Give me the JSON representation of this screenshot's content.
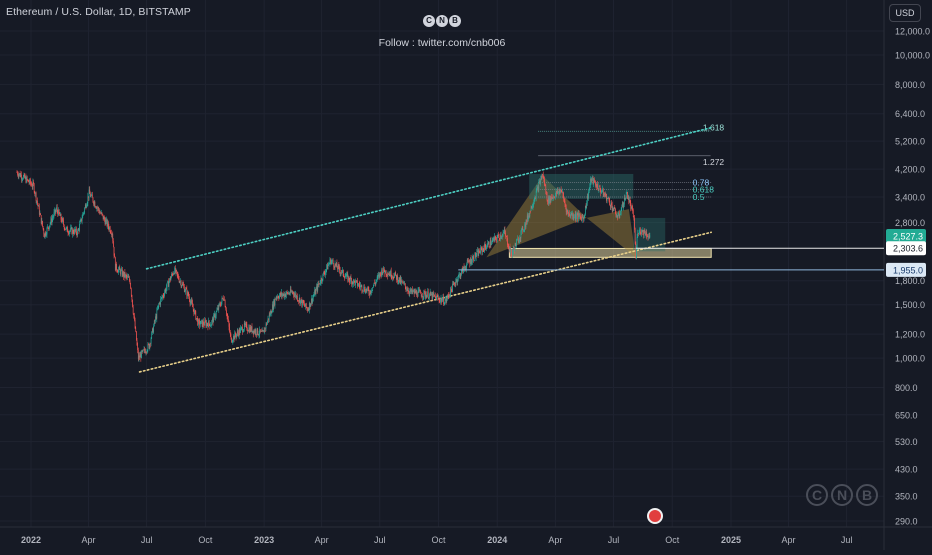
{
  "symbol": {
    "title": "Ethereum / U.S. Dollar, 1D, BITSTAMP"
  },
  "watermark": {
    "letters": [
      "C",
      "N",
      "B"
    ],
    "follow": "Follow : twitter.com/cnb006"
  },
  "currency_button": "USD",
  "colors": {
    "background": "#161a25",
    "up": "#26a69a",
    "down": "#ef5350",
    "upper_channel": "#4dd0c4",
    "lower_channel": "#e8d08a",
    "pattern_fill": "#a88a3c",
    "box_fill": "#2a6f6a",
    "support_zone": "#e0d29a",
    "price_label_up": "#22ab94",
    "white_line": "#e8e8e8",
    "blue_line": "#8fb8de"
  },
  "chart_data": {
    "type": "candlestick",
    "title": "Ethereum / U.S. Dollar, 1D, BITSTAMP",
    "scale": "log",
    "y_axis": {
      "ticks": [
        "12,000.0",
        "10,000.0",
        "8,000.0",
        "6,400.0",
        "5,200.0",
        "4,200.0",
        "3,400.0",
        "2,800.0",
        "1,800.0",
        "1,500.0",
        "1,200.0",
        "1,000.0",
        "800.0",
        "650.0",
        "530.0",
        "430.0",
        "350.0",
        "290.0"
      ],
      "tick_values": [
        12000,
        10000,
        8000,
        6400,
        5200,
        4200,
        3400,
        2800,
        1800,
        1500,
        1200,
        1000,
        800,
        650,
        530,
        430,
        350,
        290
      ]
    },
    "x_axis": {
      "ticks": [
        "2022",
        "Apr",
        "Jul",
        "Oct",
        "2023",
        "Apr",
        "Jul",
        "Oct",
        "2024",
        "Apr",
        "Jul",
        "Oct",
        "2025",
        "Apr",
        "Jul"
      ],
      "tick_dates": [
        "2022-01-01",
        "2022-04-01",
        "2022-07-01",
        "2022-10-01",
        "2023-01-01",
        "2023-04-01",
        "2023-07-01",
        "2023-10-01",
        "2024-01-01",
        "2024-04-01",
        "2024-07-01",
        "2024-10-01",
        "2025-01-01",
        "2025-04-01",
        "2025-07-01"
      ]
    },
    "price_path": [
      [
        "2021-12-10",
        4100
      ],
      [
        "2021-12-20",
        3950
      ],
      [
        "2022-01-05",
        3700
      ],
      [
        "2022-01-22",
        2550
      ],
      [
        "2022-02-10",
        3100
      ],
      [
        "2022-02-25",
        2650
      ],
      [
        "2022-03-15",
        2600
      ],
      [
        "2022-04-02",
        3500
      ],
      [
        "2022-04-20",
        3000
      ],
      [
        "2022-05-08",
        2600
      ],
      [
        "2022-05-13",
        2000
      ],
      [
        "2022-06-05",
        1800
      ],
      [
        "2022-06-18",
        1000
      ],
      [
        "2022-07-05",
        1100
      ],
      [
        "2022-07-20",
        1500
      ],
      [
        "2022-08-13",
        1950
      ],
      [
        "2022-09-05",
        1600
      ],
      [
        "2022-09-20",
        1300
      ],
      [
        "2022-10-10",
        1300
      ],
      [
        "2022-10-30",
        1600
      ],
      [
        "2022-11-10",
        1150
      ],
      [
        "2022-12-01",
        1270
      ],
      [
        "2022-12-30",
        1200
      ],
      [
        "2023-01-20",
        1600
      ],
      [
        "2023-02-15",
        1650
      ],
      [
        "2023-03-10",
        1450
      ],
      [
        "2023-03-30",
        1800
      ],
      [
        "2023-04-15",
        2100
      ],
      [
        "2023-05-10",
        1850
      ],
      [
        "2023-06-15",
        1650
      ],
      [
        "2023-07-05",
        1950
      ],
      [
        "2023-07-25",
        1870
      ],
      [
        "2023-08-18",
        1650
      ],
      [
        "2023-09-15",
        1620
      ],
      [
        "2023-10-12",
        1540
      ],
      [
        "2023-10-28",
        1800
      ],
      [
        "2023-11-15",
        2050
      ],
      [
        "2023-12-10",
        2300
      ],
      [
        "2024-01-12",
        2600
      ],
      [
        "2024-01-23",
        2200
      ],
      [
        "2024-02-15",
        2800
      ],
      [
        "2024-03-12",
        4050
      ],
      [
        "2024-03-20",
        3300
      ],
      [
        "2024-04-10",
        3600
      ],
      [
        "2024-04-20",
        3000
      ],
      [
        "2024-05-15",
        2900
      ],
      [
        "2024-05-27",
        3900
      ],
      [
        "2024-06-15",
        3500
      ],
      [
        "2024-06-24",
        3300
      ],
      [
        "2024-07-08",
        2900
      ],
      [
        "2024-07-22",
        3500
      ],
      [
        "2024-08-02",
        2900
      ],
      [
        "2024-08-05",
        2150
      ],
      [
        "2024-08-08",
        2650
      ],
      [
        "2024-08-20",
        2600
      ],
      [
        "2024-08-27",
        2500
      ]
    ],
    "price_labels": [
      {
        "value": 2527.3,
        "text": "2,527.3",
        "kind": "last-price"
      },
      {
        "value": 2303.6,
        "text": "2,303.6",
        "kind": "support-line"
      },
      {
        "value": 1955.0,
        "text": "1,955.0",
        "kind": "blue-line"
      }
    ],
    "fib_levels": [
      {
        "label": "1.618",
        "value": 5600
      },
      {
        "label": "1.272",
        "value": 4650
      },
      {
        "label": "0.78",
        "value": 3800
      },
      {
        "label": "0.618",
        "value": 3600
      },
      {
        "label": "0.5",
        "value": 3400
      }
    ],
    "channel": {
      "upper": {
        "start": [
          "2022-07-01",
          1970
        ],
        "end": [
          "2024-11-30",
          5750
        ]
      },
      "lower": {
        "start": [
          "2022-06-20",
          900
        ],
        "end": [
          "2024-12-01",
          2600
        ]
      }
    },
    "support_zone": {
      "start": "2024-01-20",
      "end": "2024-12-01",
      "low": 2150,
      "high": 2300
    },
    "reference_lines": [
      {
        "value": 2303.6,
        "start": "2024-08-05",
        "color": "white"
      },
      {
        "value": 1955.0,
        "start": "2023-11-01",
        "color": "blue"
      }
    ],
    "pattern": {
      "points": [
        [
          "2023-12-15",
          2150
        ],
        [
          "2024-03-12",
          4000
        ],
        [
          "2024-05-20",
          2900
        ],
        [
          "2024-07-25",
          3100
        ],
        [
          "2024-08-05",
          2150
        ]
      ]
    },
    "grid": true,
    "legend": "none"
  }
}
